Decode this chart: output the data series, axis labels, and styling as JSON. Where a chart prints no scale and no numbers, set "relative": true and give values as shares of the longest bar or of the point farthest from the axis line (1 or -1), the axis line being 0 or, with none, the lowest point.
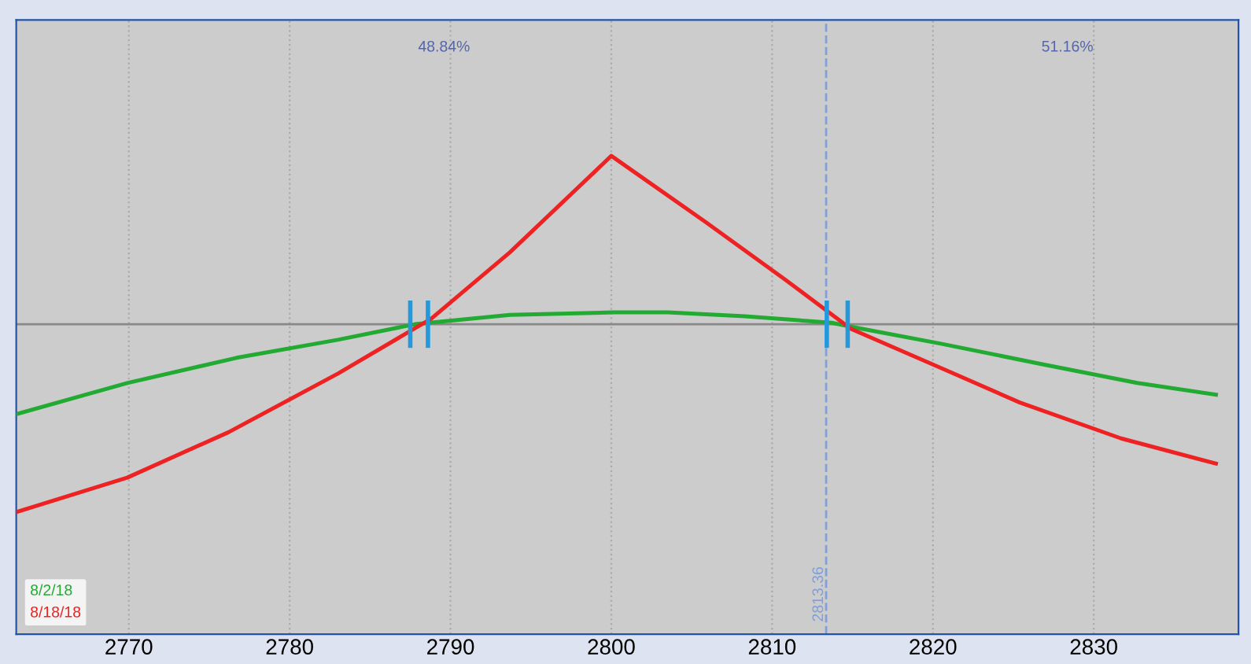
{
  "chart_data": {
    "type": "line",
    "relative": true,
    "xlim": [
      2763,
      2839
    ],
    "xticks": [
      2770,
      2780,
      2790,
      2800,
      2810,
      2820,
      2830
    ],
    "tick_labels": "x",
    "grid": "x",
    "legend": "bottom left",
    "line_style": "solid",
    "marker": "none",
    "series": [
      {
        "name": "8/2/18",
        "color": "#22aa33",
        "x": [
          2763.0,
          2769.9,
          2776.7,
          2783.0,
          2787.8,
          2793.7,
          2800.2,
          2803.5,
          2808.3,
          2813.7,
          2814.9,
          2820.5,
          2826.8,
          2832.7,
          2837.6
        ],
        "values": [
          -0.479,
          -0.313,
          -0.179,
          -0.083,
          0,
          0.05,
          0.063,
          0.063,
          0.042,
          0.008,
          -0.013,
          -0.104,
          -0.213,
          -0.313,
          -0.375
        ]
      },
      {
        "name": "8/18/18",
        "color": "#ee2222",
        "x": [
          2763.0,
          2769.9,
          2776.2,
          2783.0,
          2788.8,
          2793.7,
          2800,
          2805.9,
          2810.8,
          2814.9,
          2820.5,
          2825.4,
          2831.7,
          2837.6
        ],
        "values": [
          -1,
          -0.817,
          -0.575,
          -0.263,
          0.029,
          0.383,
          0.896,
          0.542,
          0.238,
          -0.025,
          -0.233,
          -0.417,
          -0.608,
          -0.742
        ]
      }
    ],
    "ref_lines": [
      {
        "axis": "y",
        "value": 0,
        "color": "#888888",
        "line_style": "solid"
      },
      {
        "axis": "x",
        "value": 2787.5,
        "color": "#2299dd",
        "line_style": "solid"
      },
      {
        "axis": "x",
        "value": 2788.6,
        "color": "#2299dd",
        "line_style": "solid"
      },
      {
        "axis": "x",
        "value": 2813.4,
        "color": "#2299dd",
        "line_style": "solid"
      },
      {
        "axis": "x",
        "value": 2814.7,
        "color": "#2299dd",
        "line_style": "solid"
      },
      {
        "axis": "x",
        "value": 2813.36,
        "label": "2813.36",
        "color": "#7f9fdd",
        "line_style": "dashed"
      }
    ],
    "annotations": [
      "48.84%",
      "51.16%"
    ]
  }
}
